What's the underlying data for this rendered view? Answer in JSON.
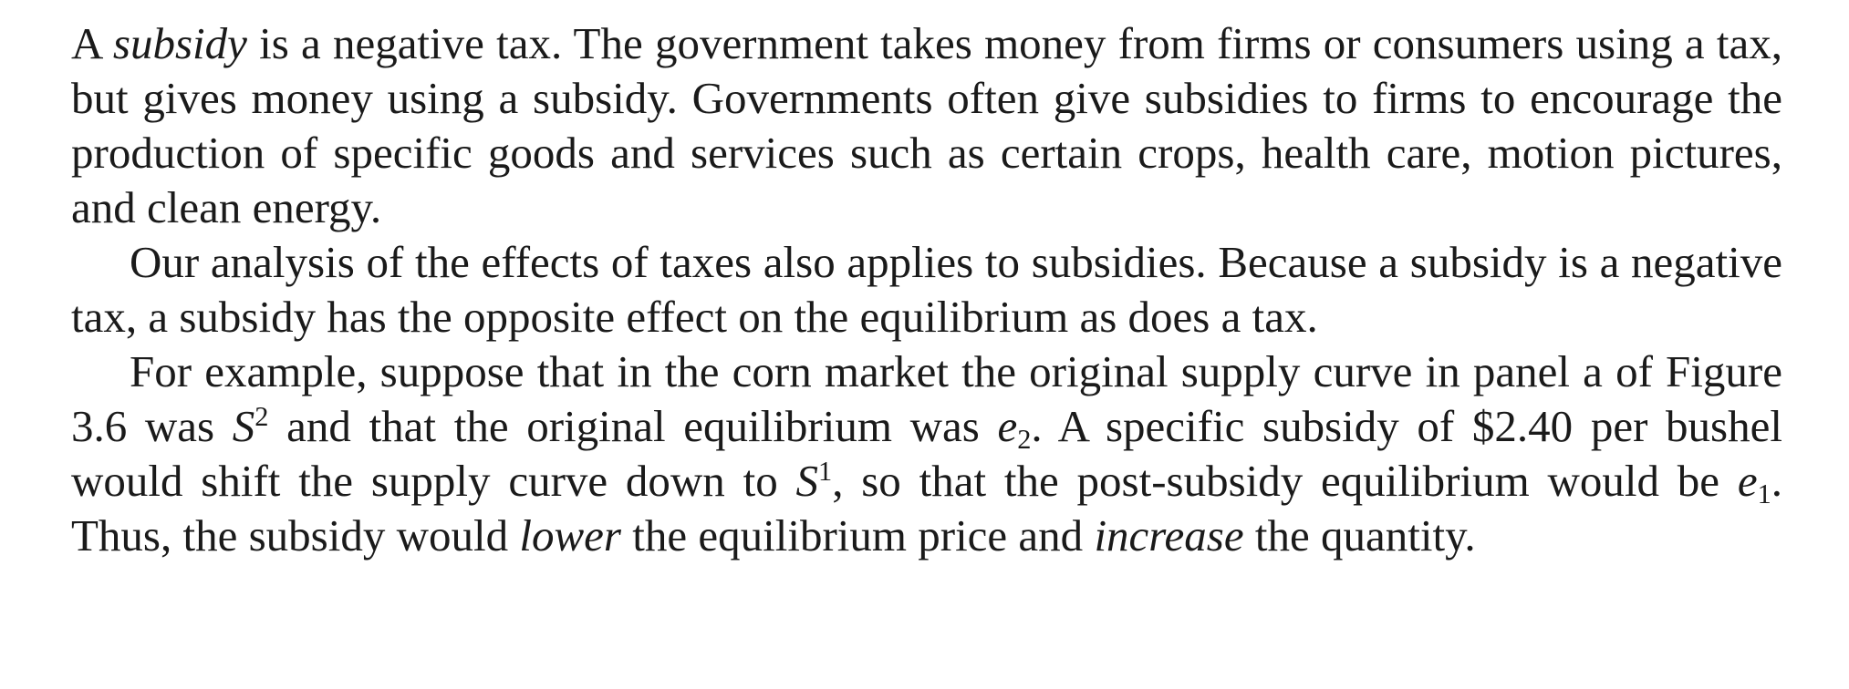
{
  "paragraphs": [
    {
      "p1_s1": "A ",
      "p1_s2": "subsidy",
      "p1_s3": " is a negative tax. The government takes money from firms or consumers using a tax, but gives money using a subsidy. Governments often give subsidies to firms to encourage the production of specific goods and services such as certain crops, health care, motion pictures, and clean energy."
    },
    {
      "p2_s1": "Our analysis of the effects of taxes also applies to subsidies. Because a subsidy is a negative tax, a subsidy has the opposite effect on the equilibrium as does a tax."
    },
    {
      "p3_s1": "For example, suppose that in the corn market the original supply curve in panel a of Figure 3.6 was ",
      "p3_s2": "S",
      "p3_s3": "2",
      "p3_s4": " and that the original equilibrium was ",
      "p3_s5": "e",
      "p3_s6": "2",
      "p3_s7": ". A specific subsidy of $2.40 per bushel would shift the supply curve down to ",
      "p3_s8": "S",
      "p3_s9": "1",
      "p3_s10": ", so that the post-subsidy equilibrium would be ",
      "p3_s11": "e",
      "p3_s12": "1",
      "p3_s13": ". Thus, the subsidy would ",
      "p3_s14": "lower",
      "p3_s15": " the equilibrium price and ",
      "p3_s16": "increase",
      "p3_s17": " the quantity."
    }
  ]
}
